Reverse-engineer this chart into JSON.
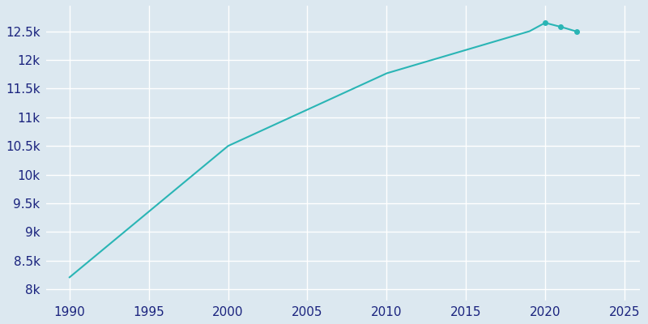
{
  "years": [
    1990,
    2000,
    2010,
    2019,
    2020,
    2021,
    2022
  ],
  "population": [
    8207,
    10500,
    11768,
    12500,
    12650,
    12580,
    12497
  ],
  "line_color": "#2ab5b5",
  "marker_color": "#2ab5b5",
  "background_color": "#dce8f0",
  "grid_color": "#ffffff",
  "tick_color": "#1a237e",
  "xlim": [
    1988.5,
    2026
  ],
  "ylim": [
    7800,
    12950
  ],
  "xticks": [
    1990,
    1995,
    2000,
    2005,
    2010,
    2015,
    2020,
    2025
  ],
  "ytick_values": [
    8000,
    8500,
    9000,
    9500,
    10000,
    10500,
    11000,
    11500,
    12000,
    12500
  ],
  "ytick_labels": [
    "8k",
    "8.5k",
    "9k",
    "9.5k",
    "10k",
    "10.5k",
    "11k",
    "11.5k",
    "12k",
    "12.5k"
  ],
  "marker_years": [
    2020,
    2021,
    2022
  ],
  "marker_pops": [
    12650,
    12580,
    12497
  ],
  "figsize": [
    8.0,
    4.0
  ],
  "dpi": 100
}
